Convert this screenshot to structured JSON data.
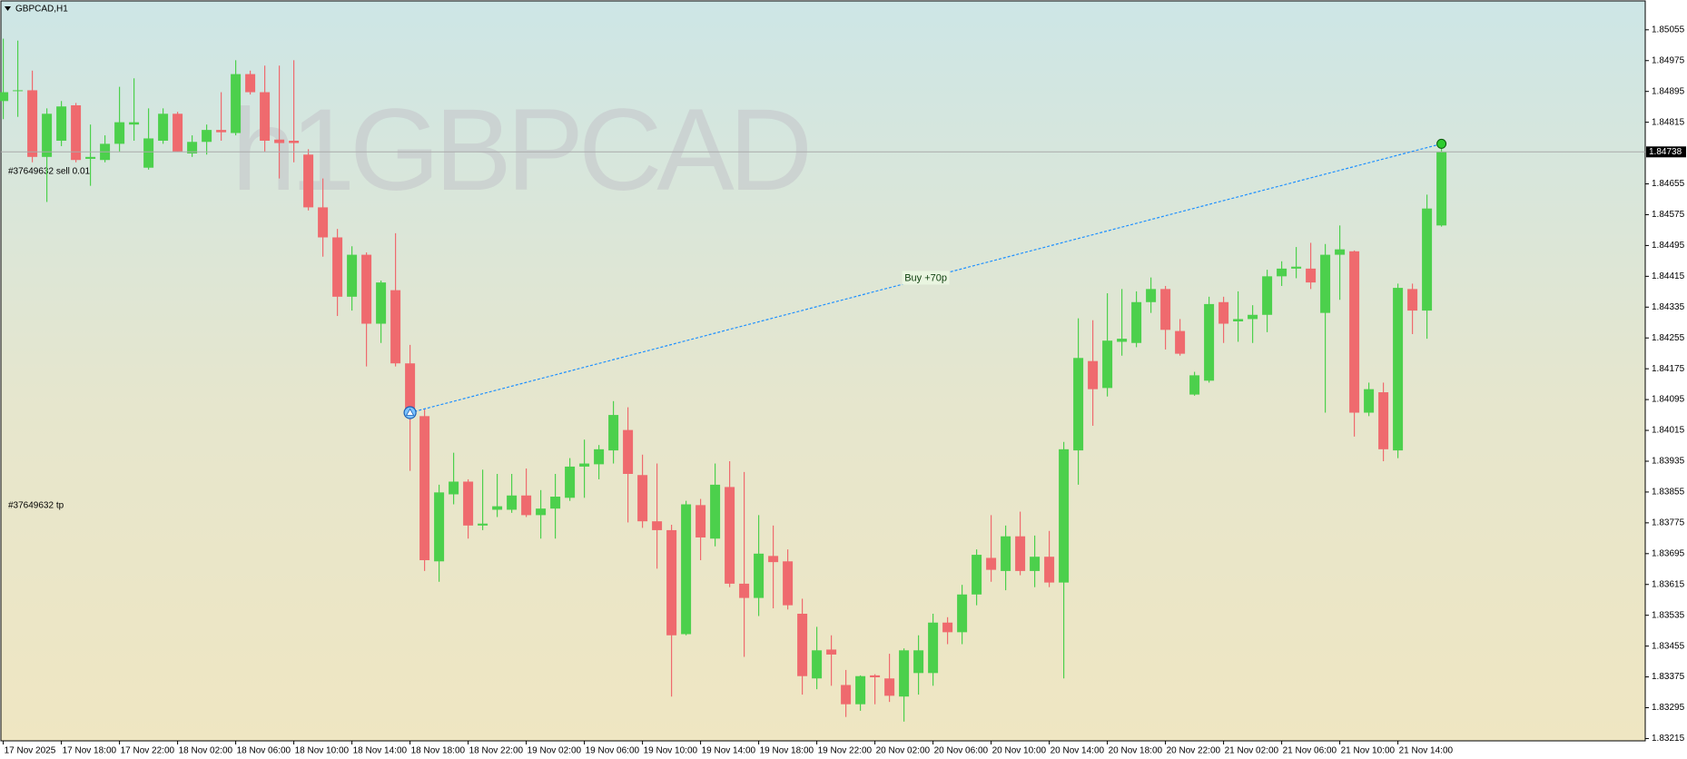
{
  "chart_data": {
    "type": "candlestick",
    "title": "GBPCAD,H1",
    "watermark": "h1GBPCAD",
    "categories": [
      "17 Nov 2025",
      null,
      null,
      null,
      "17 Nov 18:00",
      null,
      null,
      null,
      "17 Nov 22:00",
      null,
      null,
      null,
      "18 Nov 02:00",
      null,
      null,
      null,
      "18 Nov 06:00",
      null,
      null,
      null,
      "18 Nov 10:00",
      null,
      null,
      null,
      "18 Nov 14:00",
      null,
      null,
      null,
      "18 Nov 18:00",
      null,
      null,
      null,
      "18 Nov 22:00",
      null,
      null,
      null,
      "19 Nov 02:00",
      null,
      null,
      null,
      "19 Nov 06:00",
      null,
      null,
      null,
      "19 Nov 10:00",
      null,
      null,
      null,
      "19 Nov 14:00",
      null,
      null,
      null,
      "19 Nov 18:00",
      null,
      null,
      null,
      "19 Nov 22:00",
      null,
      null,
      null,
      "20 Nov 02:00",
      null,
      null,
      null,
      "20 Nov 06:00",
      null,
      null,
      null,
      "20 Nov 10:00",
      null,
      null,
      null,
      "20 Nov 14:00",
      null,
      null,
      null,
      "20 Nov 18:00",
      null,
      null,
      null,
      "20 Nov 22:00",
      null,
      null,
      null,
      "21 Nov 02:00",
      null,
      null,
      null,
      "21 Nov 06:00",
      null,
      null,
      null,
      "21 Nov 10:00",
      null,
      null,
      null,
      "21 Nov 14:00",
      null,
      null,
      null
    ],
    "open": [
      1.8487,
      1.84896,
      1.84898,
      1.84725,
      1.84767,
      1.84859,
      1.8472,
      1.84717,
      1.84759,
      1.84809,
      1.84697,
      1.84767,
      1.84837,
      1.84734,
      1.84764,
      1.84795,
      1.84787,
      1.8494,
      1.84893,
      1.8477,
      1.84767,
      1.84731,
      1.84594,
      1.84516,
      1.84362,
      1.84471,
      1.84292,
      1.84379,
      1.84189,
      1.84052,
      1.83675,
      1.83849,
      1.83882,
      1.83768,
      1.83809,
      1.83809,
      1.83846,
      1.83795,
      1.83812,
      1.8384,
      1.83921,
      1.83927,
      1.83963,
      1.84016,
      1.83899,
      1.83779,
      1.83756,
      1.83486,
      1.83821,
      1.83734,
      1.83868,
      1.83617,
      1.8358,
      1.83689,
      1.83675,
      1.83539,
      1.83371,
      1.83446,
      1.83354,
      1.83304,
      1.83379,
      1.83371,
      1.83324,
      1.83385,
      1.83385,
      1.83516,
      1.83491,
      1.83589,
      1.83684,
      1.8365,
      1.8374,
      1.8365,
      1.83687,
      1.8362,
      1.83963,
      1.84195,
      1.84125,
      1.84245,
      1.84242,
      1.84348,
      1.84382,
      1.84273,
      1.84108,
      1.84144,
      1.84348,
      1.84298,
      1.84304,
      1.84315,
      1.84415,
      1.84435,
      1.84435,
      1.8432,
      1.84471,
      1.8448,
      1.84061,
      1.84114,
      1.83963,
      1.84382,
      1.84326,
      1.84547
    ],
    "high": [
      1.85032,
      1.85027,
      1.84949,
      1.84851,
      1.8487,
      1.84865,
      1.84809,
      1.84781,
      1.84907,
      1.84929,
      1.84851,
      1.84851,
      1.84842,
      1.84781,
      1.84809,
      1.84893,
      1.84976,
      1.84949,
      1.84962,
      1.84962,
      1.84976,
      1.84745,
      1.84669,
      1.84538,
      1.84493,
      1.84477,
      1.84404,
      1.84527,
      1.84237,
      1.84069,
      1.83874,
      1.83957,
      1.83888,
      1.83913,
      1.83902,
      1.83902,
      1.83916,
      1.8386,
      1.83902,
      1.83943,
      1.83991,
      1.83977,
      1.84091,
      1.84075,
      1.83952,
      1.83929,
      1.8377,
      1.83832,
      1.83837,
      1.83929,
      1.83935,
      1.83907,
      1.83795,
      1.83768,
      1.83706,
      1.83578,
      1.83505,
      1.83483,
      1.83393,
      1.83379,
      1.83382,
      1.83435,
      1.83449,
      1.83483,
      1.83539,
      1.8353,
      1.83614,
      1.83706,
      1.83795,
      1.83768,
      1.83804,
      1.83742,
      1.83754,
      1.83985,
      1.84306,
      1.84301,
      1.84371,
      1.84382,
      1.84376,
      1.84412,
      1.8439,
      1.84304,
      1.84167,
      1.84362,
      1.84362,
      1.84376,
      1.8434,
      1.84432,
      1.84454,
      1.84491,
      1.84502,
      1.84499,
      1.84547,
      1.84482,
      1.84139,
      1.84139,
      1.84396,
      1.84396,
      1.84627,
      1.84756
    ],
    "low": [
      1.84823,
      1.84829,
      1.84711,
      1.84608,
      1.84753,
      1.84711,
      1.8465,
      1.84711,
      1.84739,
      1.84767,
      1.84692,
      1.84759,
      1.84739,
      1.84725,
      1.84731,
      1.84767,
      1.84781,
      1.84887,
      1.84739,
      1.84669,
      1.84711,
      1.84586,
      1.84466,
      1.84312,
      1.84326,
      1.84181,
      1.84242,
      1.84181,
      1.8391,
      1.8365,
      1.83622,
      1.83823,
      1.83734,
      1.83756,
      1.8379,
      1.83801,
      1.8379,
      1.83734,
      1.83734,
      1.83832,
      1.8384,
      1.83888,
      1.83929,
      1.83776,
      1.83762,
      1.83656,
      1.83324,
      1.83483,
      1.83678,
      1.83714,
      1.83608,
      1.83427,
      1.83533,
      1.83553,
      1.8355,
      1.83329,
      1.83343,
      1.83352,
      1.83271,
      1.83287,
      1.83304,
      1.8331,
      1.83259,
      1.83329,
      1.83352,
      1.8346,
      1.8346,
      1.83561,
      1.83622,
      1.836,
      1.83639,
      1.83608,
      1.83608,
      1.83371,
      1.83874,
      1.84027,
      1.84103,
      1.84209,
      1.84231,
      1.8432,
      1.84225,
      1.84209,
      1.84105,
      1.84139,
      1.84242,
      1.84245,
      1.84242,
      1.8427,
      1.8439,
      1.8441,
      1.84382,
      1.84061,
      1.84354,
      1.83999,
      1.84052,
      1.83935,
      1.83943,
      1.84265,
      1.84253,
      1.84544
    ],
    "close": [
      1.84893,
      1.84898,
      1.84725,
      1.84837,
      1.84856,
      1.84717,
      1.84725,
      1.84759,
      1.84815,
      1.84815,
      1.84773,
      1.84837,
      1.84739,
      1.84764,
      1.84795,
      1.84789,
      1.8494,
      1.84893,
      1.84767,
      1.84761,
      1.84761,
      1.84594,
      1.84516,
      1.84362,
      1.84471,
      1.84292,
      1.84399,
      1.84189,
      1.84061,
      1.83678,
      1.83854,
      1.83882,
      1.83768,
      1.83773,
      1.83818,
      1.83846,
      1.83795,
      1.83812,
      1.83843,
      1.83921,
      1.83929,
      1.83966,
      1.84055,
      1.83902,
      1.83779,
      1.83756,
      1.83483,
      1.83823,
      1.83737,
      1.83874,
      1.83617,
      1.8358,
      1.83695,
      1.83673,
      1.83561,
      1.83377,
      1.83444,
      1.83433,
      1.83304,
      1.83377,
      1.83374,
      1.83326,
      1.83444,
      1.83444,
      1.83516,
      1.83491,
      1.83589,
      1.83692,
      1.83653,
      1.8374,
      1.8365,
      1.83687,
      1.8362,
      1.83966,
      1.84203,
      1.84122,
      1.84248,
      1.84253,
      1.84348,
      1.84382,
      1.84276,
      1.84214,
      1.84158,
      1.84343,
      1.84292,
      1.84304,
      1.84315,
      1.84415,
      1.84435,
      1.8444,
      1.84399,
      1.84471,
      1.84485,
      1.84061,
      1.84122,
      1.83966,
      1.84385,
      1.84326,
      1.84591,
      1.84738
    ],
    "up_color": "#4cd04c",
    "down_color": "#ef6a6e",
    "ylim": [
      1.83209,
      1.8513
    ],
    "yticks": [
      1.85055,
      1.84975,
      1.84895,
      1.84815,
      1.84655,
      1.84575,
      1.84495,
      1.84415,
      1.84335,
      1.84255,
      1.84175,
      1.84095,
      1.84015,
      1.83935,
      1.83855,
      1.83775,
      1.83695,
      1.83615,
      1.83535,
      1.83455,
      1.83375,
      1.83295,
      1.83215
    ],
    "trade": {
      "label": "Buy +70p",
      "x": [
        28,
        99
      ],
      "values": [
        1.84061,
        1.84759
      ],
      "color": "#1e90ff"
    },
    "order_labels": [
      "#37649632 sell 0.01",
      "#37649632 tp"
    ]
  }
}
